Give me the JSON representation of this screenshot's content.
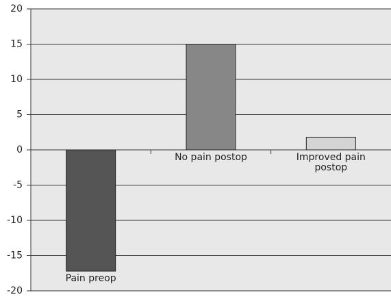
{
  "chart_data": {
    "type": "bar",
    "categories": [
      "Pain preop",
      "No pain postop",
      "Improved pain postop"
    ],
    "values": [
      -17.2,
      15,
      1.8
    ],
    "colors": [
      "#555555",
      "#878787",
      "#d4d4d4"
    ],
    "ylim": [
      -20,
      20
    ],
    "yticks": [
      -20,
      -15,
      -10,
      -5,
      0,
      5,
      10,
      15,
      20
    ],
    "grid": true
  }
}
